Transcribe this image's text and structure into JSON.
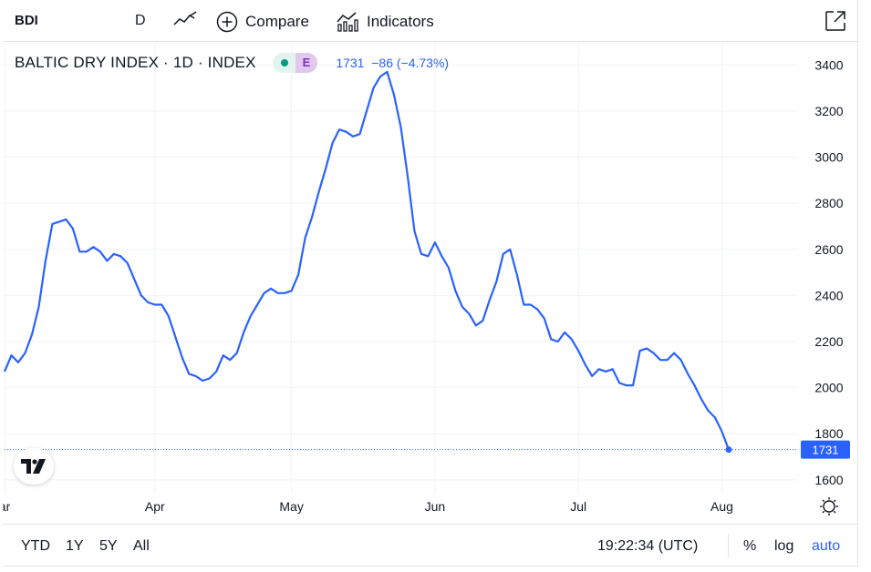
{
  "toolbar": {
    "symbol": "BDI",
    "interval": "D",
    "compare_label": "Compare",
    "indicators_label": "Indicators"
  },
  "legend": {
    "title": "BALTIC DRY INDEX · 1D · INDEX",
    "badge": "E",
    "value_text": "1731  −86 (−4.73%)"
  },
  "bottom": {
    "ranges": [
      "YTD",
      "1Y",
      "5Y",
      "All"
    ],
    "time": "19:22:34 (UTC)",
    "percent": "%",
    "log": "log",
    "auto": "auto"
  },
  "colors": {
    "line": "#2962ff",
    "price_label_bg": "#2962ff",
    "accent": "#2962ff"
  },
  "chart_data": {
    "type": "line",
    "y_ticks": [
      1600,
      1800,
      2000,
      2200,
      2400,
      2600,
      2800,
      3000,
      3200,
      3400
    ],
    "x_ticks": [
      {
        "label": "ar",
        "index": 0
      },
      {
        "label": "Apr",
        "index": 22
      },
      {
        "label": "May",
        "index": 42
      },
      {
        "label": "Jun",
        "index": 63
      },
      {
        "label": "Jul",
        "index": 84
      },
      {
        "label": "Aug",
        "index": 105
      }
    ],
    "ylim": [
      1540,
      3500
    ],
    "last_value": 1731,
    "last_label": "1731",
    "grid": true,
    "values": [
      2070,
      2140,
      2110,
      2150,
      2230,
      2350,
      2550,
      2710,
      2720,
      2730,
      2690,
      2590,
      2590,
      2610,
      2590,
      2550,
      2580,
      2570,
      2540,
      2470,
      2400,
      2370,
      2360,
      2360,
      2310,
      2220,
      2130,
      2060,
      2050,
      2030,
      2040,
      2070,
      2140,
      2120,
      2150,
      2240,
      2310,
      2360,
      2410,
      2430,
      2410,
      2410,
      2420,
      2490,
      2650,
      2740,
      2850,
      2950,
      3060,
      3120,
      3110,
      3090,
      3100,
      3200,
      3300,
      3350,
      3370,
      3270,
      3130,
      2920,
      2680,
      2580,
      2570,
      2630,
      2570,
      2520,
      2420,
      2350,
      2320,
      2270,
      2290,
      2380,
      2460,
      2580,
      2600,
      2490,
      2360,
      2360,
      2340,
      2300,
      2210,
      2200,
      2240,
      2210,
      2160,
      2100,
      2050,
      2080,
      2070,
      2080,
      2020,
      2010,
      2010,
      2160,
      2170,
      2150,
      2120,
      2120,
      2150,
      2120,
      2060,
      2010,
      1950,
      1900,
      1870,
      1810,
      1731
    ]
  }
}
